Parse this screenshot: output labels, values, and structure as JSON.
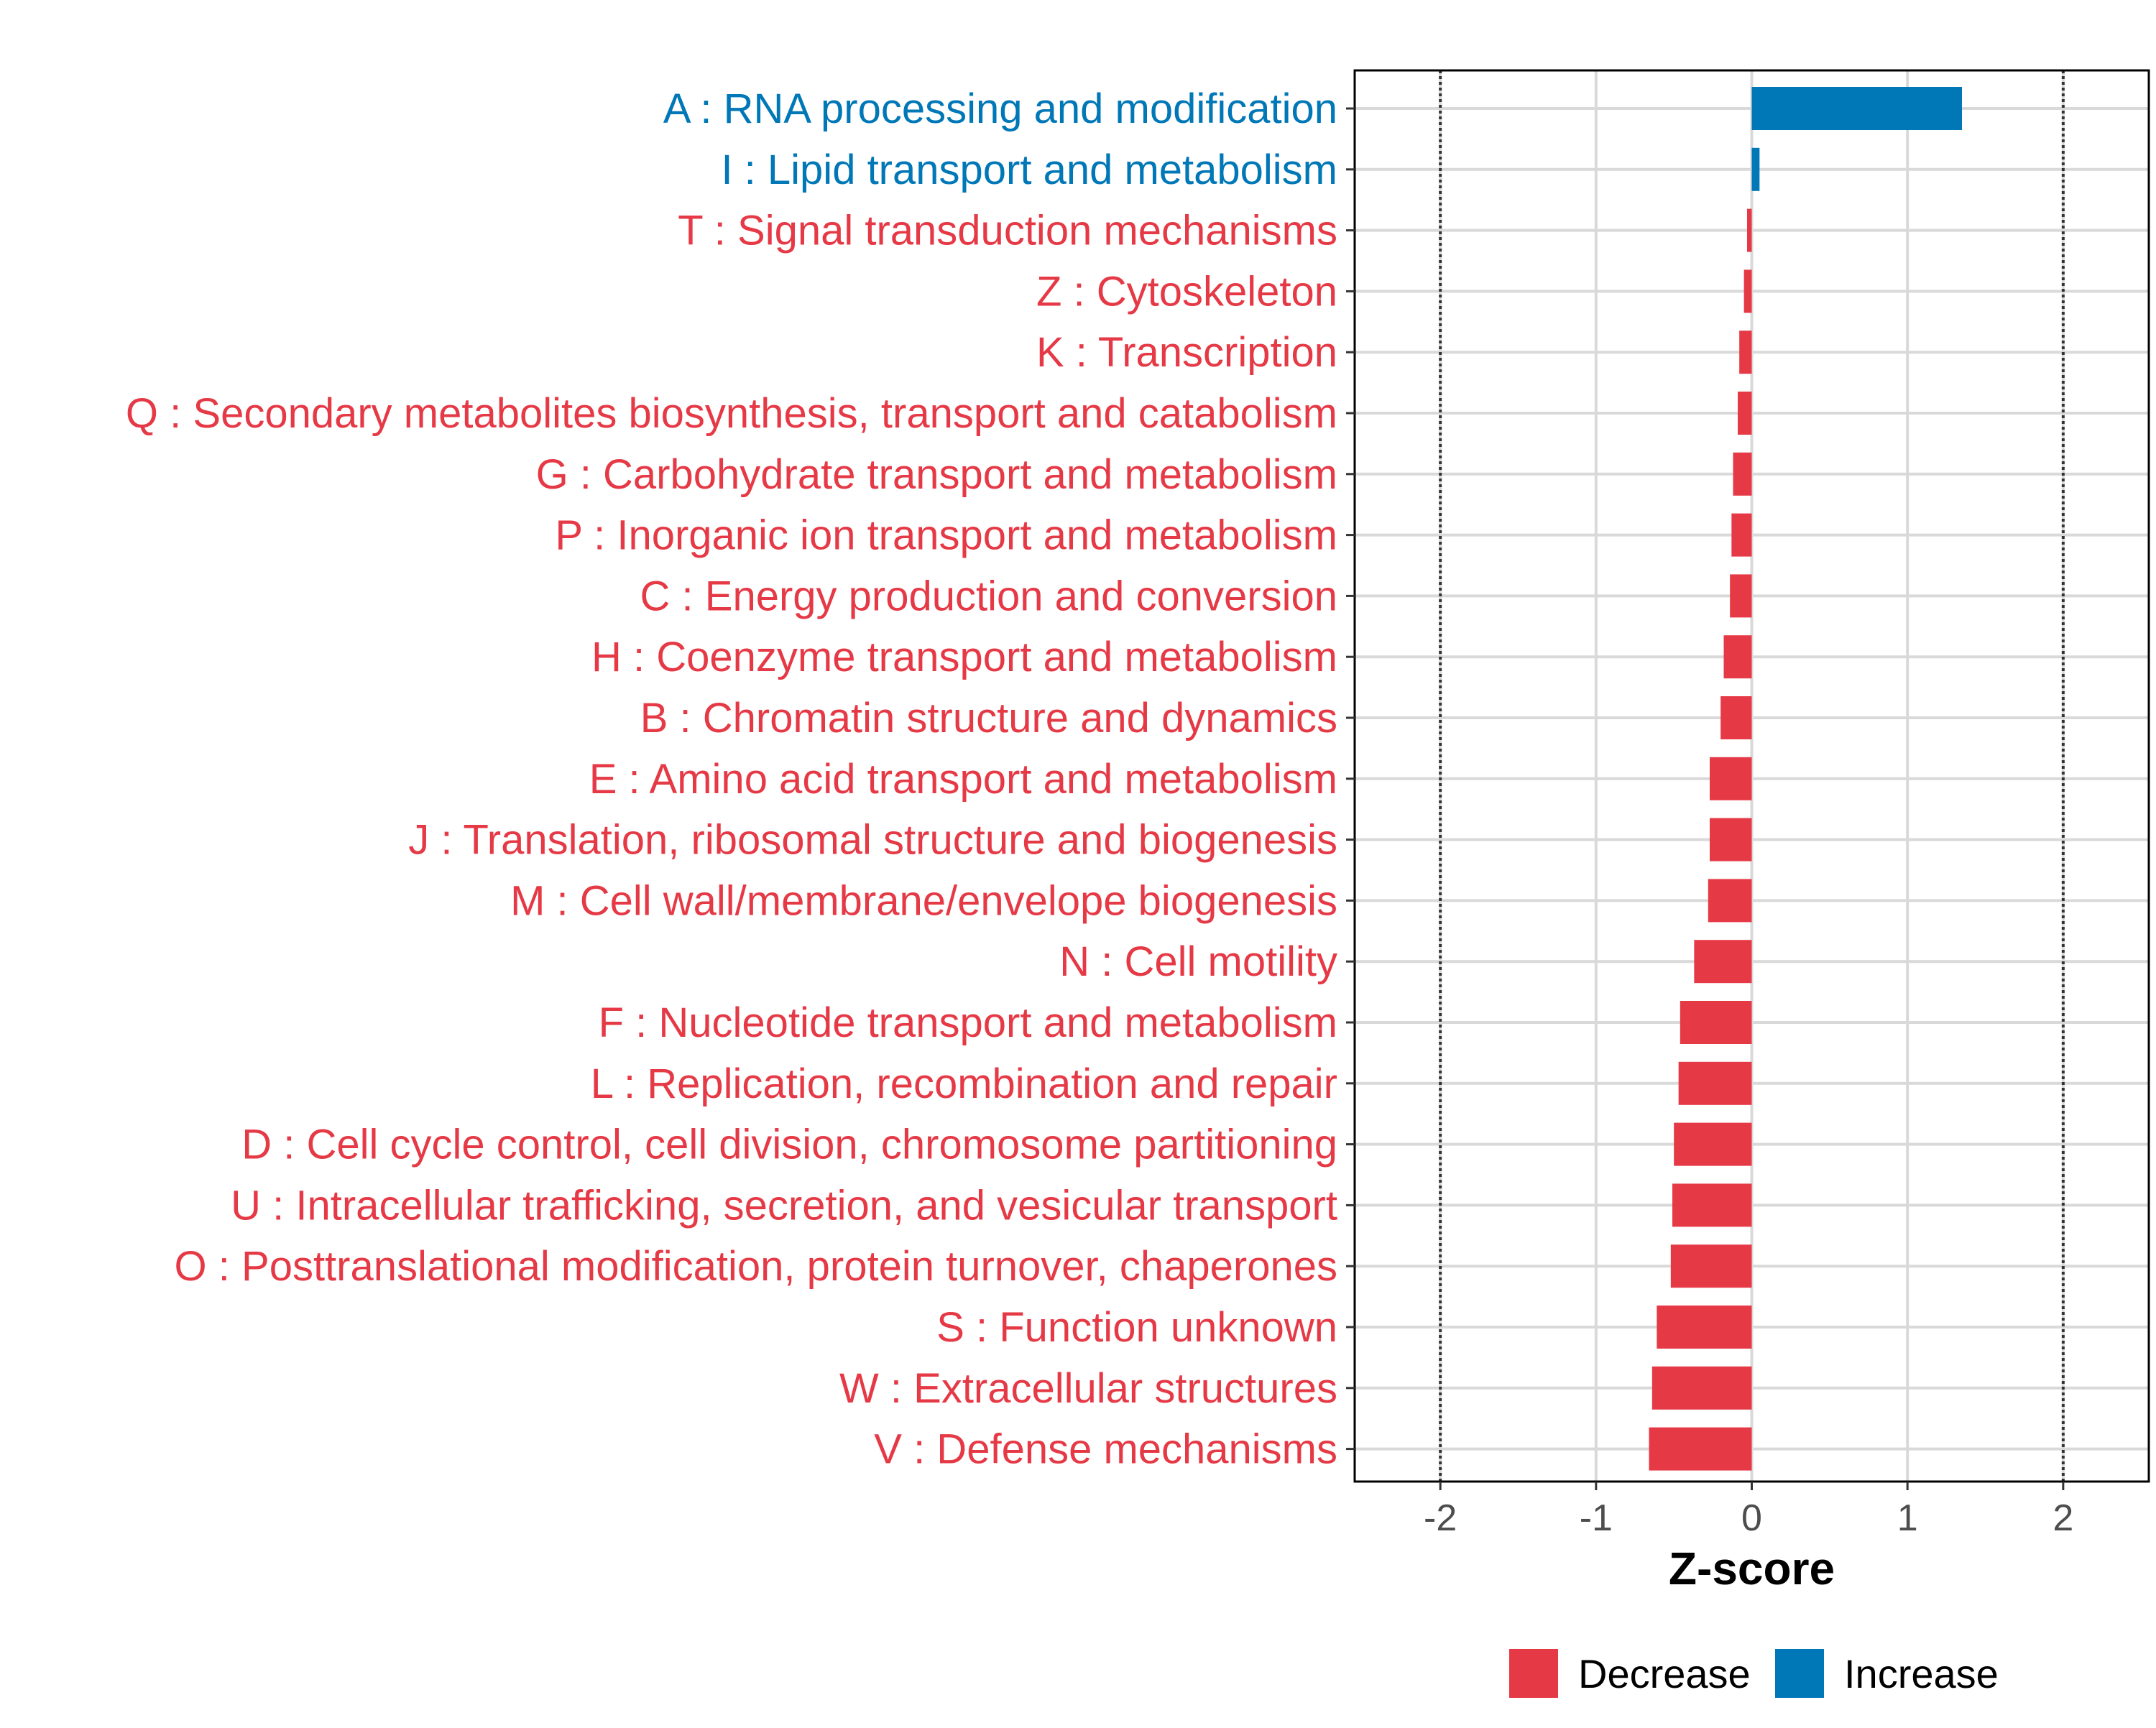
{
  "chart_data": {
    "type": "bar",
    "orientation": "horizontal",
    "title": "",
    "xlabel": "Z-score",
    "ylabel": "",
    "xlim": [
      -2.55,
      2.55
    ],
    "x_ticks": [
      -2,
      -1,
      0,
      1,
      2
    ],
    "x_tick_labels": [
      "-2",
      "-1",
      "0",
      "1",
      "2"
    ],
    "reference_lines": [
      -2,
      2
    ],
    "grid": true,
    "legend_position": "bottom",
    "colors": {
      "Decrease": "#E63946",
      "Increase": "#0077B6"
    },
    "legend": [
      {
        "label": "Decrease",
        "color": "#E63946"
      },
      {
        "label": "Increase",
        "color": "#0077B6"
      }
    ],
    "categories": [
      "A : RNA processing and modification",
      "I : Lipid transport and metabolism",
      "T : Signal transduction mechanisms",
      "Z : Cytoskeleton",
      "K : Transcription",
      "Q : Secondary metabolites biosynthesis, transport and catabolism",
      "G : Carbohydrate transport and metabolism",
      "P : Inorganic ion transport and metabolism",
      "C : Energy production and conversion",
      "H : Coenzyme transport and metabolism",
      "B : Chromatin structure and dynamics",
      "E : Amino acid transport and metabolism",
      "J : Translation, ribosomal structure and biogenesis",
      "M : Cell wall/membrane/envelope biogenesis",
      "N : Cell motility",
      "F : Nucleotide transport and metabolism",
      "L : Replication, recombination and repair",
      "D : Cell cycle control, cell division, chromosome partitioning",
      "U : Intracellular trafficking, secretion, and vesicular transport",
      "O : Posttranslational modification, protein turnover, chaperones",
      "S : Function unknown",
      "W : Extracellular structures",
      "V : Defense mechanisms"
    ],
    "values": [
      1.35,
      0.05,
      -0.03,
      -0.05,
      -0.08,
      -0.09,
      -0.12,
      -0.13,
      -0.14,
      -0.18,
      -0.2,
      -0.27,
      -0.27,
      -0.28,
      -0.37,
      -0.46,
      -0.47,
      -0.5,
      -0.51,
      -0.52,
      -0.61,
      -0.64,
      -0.66
    ],
    "groups": [
      "Increase",
      "Increase",
      "Decrease",
      "Decrease",
      "Decrease",
      "Decrease",
      "Decrease",
      "Decrease",
      "Decrease",
      "Decrease",
      "Decrease",
      "Decrease",
      "Decrease",
      "Decrease",
      "Decrease",
      "Decrease",
      "Decrease",
      "Decrease",
      "Decrease",
      "Decrease",
      "Decrease",
      "Decrease",
      "Decrease"
    ]
  }
}
